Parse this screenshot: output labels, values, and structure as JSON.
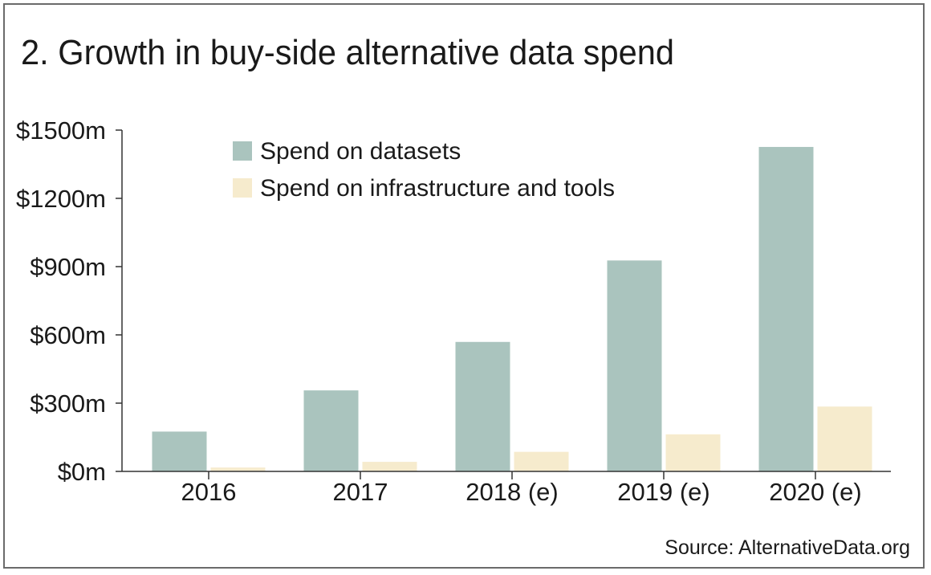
{
  "chart_data": {
    "type": "bar",
    "title": "2. Growth in buy-side alternative data spend",
    "categories": [
      "2016",
      "2017",
      "2018 (e)",
      "2019 (e)",
      "2020 (e)"
    ],
    "series": [
      {
        "name": "Spend on datasets",
        "color": "#aac4be",
        "values": [
          175,
          356,
          569,
          927,
          1426
        ]
      },
      {
        "name": "Spend on infrastructure and tools",
        "color": "#f6ebcd",
        "values": [
          17,
          42,
          86,
          163,
          285
        ]
      }
    ],
    "yticks": [
      0,
      300,
      600,
      900,
      1200,
      1500
    ],
    "ytick_labels": [
      "$0m",
      "$300m",
      "$600m",
      "$900m",
      "$1200m",
      "$1500m"
    ],
    "ylim": [
      0,
      1500
    ],
    "xlabel": "",
    "ylabel": "",
    "legend_position": "top-left",
    "grid": false,
    "source": "Source:  AlternativeData.org"
  }
}
